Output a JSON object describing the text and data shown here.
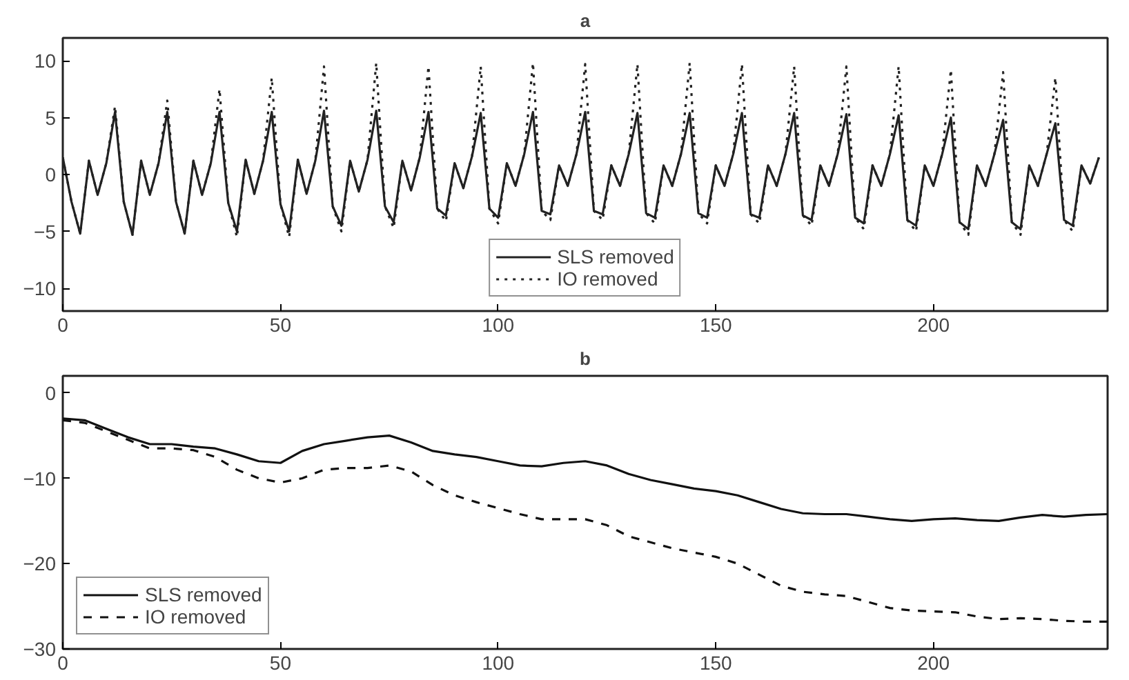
{
  "chart_data": [
    {
      "type": "line",
      "title": "a",
      "x": [
        0,
        2,
        4,
        6,
        8,
        10,
        12,
        14,
        16,
        18,
        20,
        22,
        24,
        26,
        28,
        30,
        32,
        34,
        36,
        38,
        40,
        42,
        44,
        46,
        48,
        50,
        52,
        54,
        56,
        58,
        60,
        62,
        64,
        66,
        68,
        70,
        72,
        74,
        76,
        78,
        80,
        82,
        84,
        86,
        88,
        90,
        92,
        94,
        96,
        98,
        100,
        102,
        104,
        106,
        108,
        110,
        112,
        114,
        116,
        118,
        120,
        122,
        124,
        126,
        128,
        130,
        132,
        134,
        136,
        138,
        140,
        142,
        144,
        146,
        148,
        150,
        152,
        154,
        156,
        158,
        160,
        162,
        164,
        166,
        168,
        170,
        172,
        174,
        176,
        178,
        180,
        182,
        184,
        186,
        188,
        190,
        192,
        194,
        196,
        198,
        200,
        202,
        204,
        206,
        208,
        210,
        212,
        214,
        216,
        218,
        220,
        222,
        224,
        226,
        228,
        230,
        232,
        234,
        236,
        238
      ],
      "series": [
        {
          "name": "SLS removed",
          "color": "#222222",
          "line_style": "solid",
          "values": [
            1.5,
            -2.4,
            -5.2,
            1.2,
            -1.8,
            1.0,
            5.5,
            -2.4,
            -5.3,
            1.2,
            -1.8,
            1.0,
            5.5,
            -2.4,
            -5.2,
            1.2,
            -1.8,
            1.0,
            5.5,
            -2.5,
            -5.0,
            1.3,
            -1.7,
            1.2,
            5.5,
            -2.6,
            -5.0,
            1.3,
            -1.7,
            1.2,
            5.6,
            -2.8,
            -4.5,
            1.2,
            -1.5,
            1.3,
            5.6,
            -2.8,
            -4.2,
            1.2,
            -1.4,
            1.5,
            5.5,
            -3.0,
            -3.6,
            1.0,
            -1.2,
            1.6,
            5.4,
            -3.0,
            -3.8,
            1.0,
            -1.0,
            1.8,
            5.5,
            -3.2,
            -3.5,
            0.8,
            -1.0,
            1.8,
            5.5,
            -3.2,
            -3.5,
            0.8,
            -1.0,
            1.8,
            5.4,
            -3.4,
            -3.8,
            0.8,
            -1.0,
            1.8,
            5.4,
            -3.4,
            -3.8,
            0.8,
            -1.0,
            1.8,
            5.4,
            -3.5,
            -3.8,
            0.8,
            -1.0,
            1.8,
            5.4,
            -3.6,
            -4.0,
            0.8,
            -1.0,
            1.8,
            5.3,
            -3.8,
            -4.3,
            0.8,
            -1.0,
            1.8,
            5.2,
            -4.0,
            -4.5,
            0.8,
            -1.0,
            1.8,
            5.0,
            -4.2,
            -4.8,
            0.8,
            -1.0,
            1.8,
            4.8,
            -4.2,
            -4.8,
            0.8,
            -1.0,
            1.8,
            4.5,
            -4.0,
            -4.5,
            0.8,
            -0.8,
            1.5
          ]
        },
        {
          "name": "IO removed",
          "color": "#222222",
          "line_style": "dotted",
          "values": [
            1.5,
            -2.4,
            -5.2,
            1.2,
            -1.8,
            1.0,
            6.0,
            -2.4,
            -5.3,
            1.2,
            -1.8,
            1.0,
            6.5,
            -2.4,
            -5.2,
            1.2,
            -1.8,
            1.0,
            7.5,
            -2.5,
            -5.5,
            1.3,
            -1.7,
            1.2,
            8.5,
            -2.6,
            -5.5,
            1.3,
            -1.7,
            1.2,
            9.5,
            -2.8,
            -5.0,
            1.2,
            -1.5,
            1.3,
            9.8,
            -2.8,
            -4.7,
            1.2,
            -1.4,
            1.5,
            9.5,
            -3.0,
            -4.1,
            1.0,
            -1.2,
            1.6,
            9.5,
            -3.0,
            -4.3,
            1.0,
            -1.0,
            1.8,
            9.8,
            -3.2,
            -4.0,
            0.8,
            -1.0,
            1.8,
            9.7,
            -3.2,
            -4.0,
            0.8,
            -1.0,
            1.8,
            9.7,
            -3.4,
            -4.3,
            0.8,
            -1.0,
            1.8,
            9.8,
            -3.4,
            -4.3,
            0.8,
            -1.0,
            1.8,
            9.7,
            -3.5,
            -4.3,
            0.8,
            -1.0,
            1.8,
            9.5,
            -3.6,
            -4.5,
            0.8,
            -1.0,
            1.8,
            9.5,
            -3.8,
            -4.8,
            0.8,
            -1.0,
            1.8,
            9.5,
            -4.0,
            -5.0,
            0.8,
            -1.0,
            1.8,
            9.2,
            -4.2,
            -5.3,
            0.8,
            -1.0,
            1.8,
            9.0,
            -4.2,
            -5.3,
            0.8,
            -1.0,
            1.8,
            8.5,
            -4.0,
            -5.0,
            0.8,
            -0.8,
            1.5
          ]
        }
      ],
      "xlim": [
        0,
        240
      ],
      "ylim": [
        -12,
        12
      ],
      "xticks": [
        0,
        50,
        100,
        150,
        200
      ],
      "yticks": [
        -10,
        -5,
        0,
        5,
        10
      ],
      "grid": false,
      "legend": "bottom"
    },
    {
      "type": "line",
      "title": "b",
      "x": [
        0,
        5,
        10,
        15,
        20,
        25,
        30,
        35,
        40,
        45,
        50,
        55,
        60,
        65,
        70,
        75,
        80,
        85,
        90,
        95,
        100,
        105,
        110,
        115,
        120,
        125,
        130,
        135,
        140,
        145,
        150,
        155,
        160,
        165,
        170,
        175,
        180,
        185,
        190,
        195,
        200,
        205,
        210,
        215,
        220,
        225,
        230,
        235,
        240
      ],
      "series": [
        {
          "name": "SLS removed",
          "color": "#111111",
          "line_style": "solid",
          "values": [
            -3,
            -3.2,
            -4.2,
            -5.2,
            -6,
            -6,
            -6.3,
            -6.5,
            -7.2,
            -8,
            -8.2,
            -6.8,
            -6,
            -5.6,
            -5.2,
            -5,
            -5.8,
            -6.8,
            -7.2,
            -7.5,
            -8,
            -8.5,
            -8.6,
            -8.2,
            -8,
            -8.5,
            -9.5,
            -10.2,
            -10.7,
            -11.2,
            -11.5,
            -12,
            -12.8,
            -13.6,
            -14.1,
            -14.2,
            -14.2,
            -14.5,
            -14.8,
            -15,
            -14.8,
            -14.7,
            -14.9,
            -15,
            -14.6,
            -14.3,
            -14.5,
            -14.3,
            -14.2
          ]
        },
        {
          "name": "IO removed",
          "color": "#111111",
          "line_style": "dashed",
          "values": [
            -3.2,
            -3.5,
            -4.5,
            -5.5,
            -6.5,
            -6.5,
            -6.7,
            -7.5,
            -9,
            -10,
            -10.5,
            -10,
            -9,
            -8.8,
            -8.8,
            -8.5,
            -9.2,
            -10.8,
            -12,
            -12.8,
            -13.5,
            -14.2,
            -14.8,
            -14.8,
            -14.8,
            -15.5,
            -16.8,
            -17.5,
            -18.2,
            -18.7,
            -19.2,
            -20,
            -21.3,
            -22.6,
            -23.3,
            -23.6,
            -23.8,
            -24.5,
            -25.2,
            -25.5,
            -25.6,
            -25.7,
            -26.2,
            -26.5,
            -26.4,
            -26.5,
            -26.7,
            -26.8,
            -26.8
          ]
        }
      ],
      "xlim": [
        0,
        240
      ],
      "ylim": [
        -30,
        2
      ],
      "xticks": [
        0,
        50,
        100,
        150,
        200
      ],
      "yticks": [
        -30,
        -20,
        -10,
        0
      ],
      "grid": false,
      "legend": "bottom left"
    }
  ]
}
